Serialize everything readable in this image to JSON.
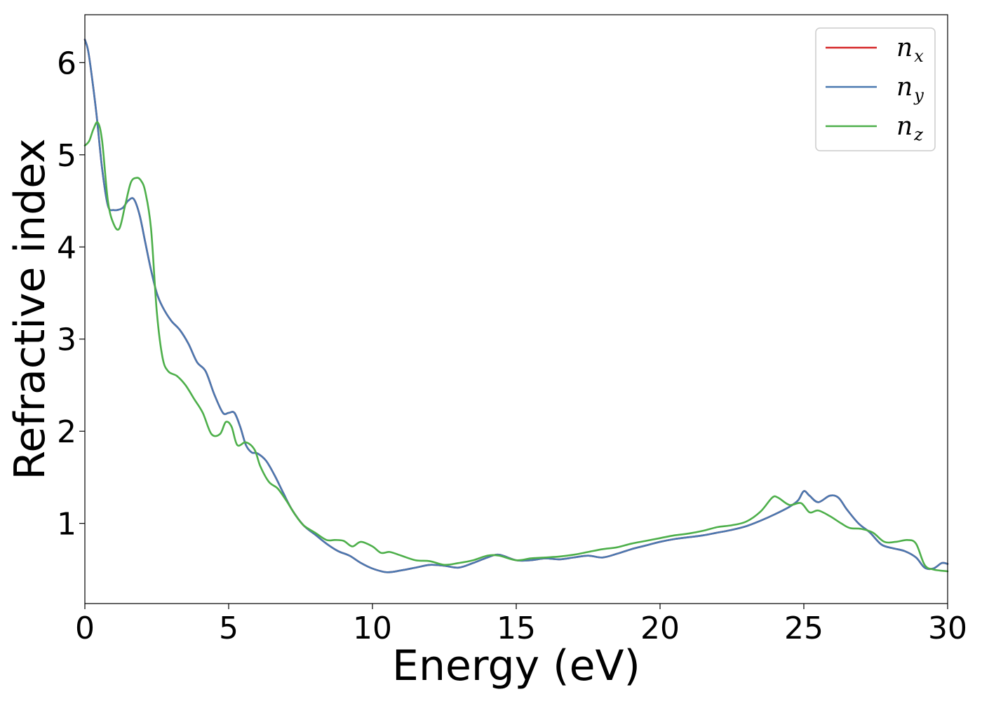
{
  "chart_data": {
    "type": "line",
    "title": "",
    "xlabel": "Energy (eV)",
    "ylabel": "Refractive index",
    "xlim": [
      0,
      30
    ],
    "ylim": [
      0.13,
      6.52
    ],
    "xticks": [
      0,
      5,
      10,
      15,
      20,
      25,
      30
    ],
    "xtick_labels": [
      "0",
      "5",
      "10",
      "15",
      "20",
      "25",
      "30"
    ],
    "yticks": [
      1,
      2,
      3,
      4,
      5,
      6
    ],
    "ytick_labels": [
      "1",
      "2",
      "3",
      "4",
      "5",
      "6"
    ],
    "grid": false,
    "legend_position": "top-right",
    "series": [
      {
        "name": "n_x",
        "label_main": "n",
        "label_sub": "x",
        "color": "#d62728",
        "x": [
          0,
          0.1,
          0.2,
          0.4,
          0.6,
          0.8,
          1.0,
          1.3,
          1.5,
          1.7,
          1.9,
          2.1,
          2.3,
          2.5,
          2.7,
          3.0,
          3.3,
          3.6,
          3.9,
          4.2,
          4.5,
          4.8,
          5.0,
          5.2,
          5.4,
          5.6,
          5.8,
          6.0,
          6.3,
          6.6,
          6.9,
          7.2,
          7.6,
          8.0,
          8.4,
          8.8,
          9.2,
          9.6,
          10.0,
          10.5,
          11.0,
          11.5,
          12.0,
          12.5,
          13.0,
          13.5,
          14.0,
          14.4,
          15.0,
          15.5,
          16.0,
          16.5,
          17.0,
          17.5,
          18.0,
          18.5,
          19.0,
          19.5,
          20.0,
          20.5,
          21.0,
          21.5,
          22.0,
          22.5,
          23.0,
          23.5,
          24.0,
          24.5,
          24.8,
          25.0,
          25.2,
          25.5,
          25.9,
          26.2,
          26.5,
          26.9,
          27.3,
          27.7,
          28.1,
          28.5,
          28.9,
          29.2,
          29.5,
          29.8,
          30.0
        ],
        "y": [
          6.25,
          6.15,
          5.95,
          5.45,
          4.85,
          4.45,
          4.4,
          4.42,
          4.5,
          4.52,
          4.35,
          4.05,
          3.75,
          3.5,
          3.35,
          3.2,
          3.1,
          2.95,
          2.75,
          2.65,
          2.4,
          2.2,
          2.2,
          2.2,
          2.05,
          1.85,
          1.77,
          1.76,
          1.68,
          1.52,
          1.33,
          1.15,
          0.98,
          0.88,
          0.78,
          0.7,
          0.65,
          0.57,
          0.51,
          0.47,
          0.49,
          0.52,
          0.55,
          0.54,
          0.52,
          0.57,
          0.63,
          0.66,
          0.6,
          0.6,
          0.62,
          0.61,
          0.63,
          0.65,
          0.63,
          0.67,
          0.72,
          0.76,
          0.8,
          0.83,
          0.85,
          0.87,
          0.9,
          0.93,
          0.97,
          1.03,
          1.1,
          1.18,
          1.25,
          1.35,
          1.3,
          1.23,
          1.3,
          1.28,
          1.15,
          1.0,
          0.9,
          0.77,
          0.73,
          0.7,
          0.63,
          0.52,
          0.51,
          0.57,
          0.56
        ]
      },
      {
        "name": "n_y",
        "label_main": "n",
        "label_sub": "y",
        "color": "#4a78b0",
        "x": [
          0,
          0.1,
          0.2,
          0.4,
          0.6,
          0.8,
          1.0,
          1.3,
          1.5,
          1.7,
          1.9,
          2.1,
          2.3,
          2.5,
          2.7,
          3.0,
          3.3,
          3.6,
          3.9,
          4.2,
          4.5,
          4.8,
          5.0,
          5.2,
          5.4,
          5.6,
          5.8,
          6.0,
          6.3,
          6.6,
          6.9,
          7.2,
          7.6,
          8.0,
          8.4,
          8.8,
          9.2,
          9.6,
          10.0,
          10.5,
          11.0,
          11.5,
          12.0,
          12.5,
          13.0,
          13.5,
          14.0,
          14.4,
          15.0,
          15.5,
          16.0,
          16.5,
          17.0,
          17.5,
          18.0,
          18.5,
          19.0,
          19.5,
          20.0,
          20.5,
          21.0,
          21.5,
          22.0,
          22.5,
          23.0,
          23.5,
          24.0,
          24.5,
          24.8,
          25.0,
          25.2,
          25.5,
          25.9,
          26.2,
          26.5,
          26.9,
          27.3,
          27.7,
          28.1,
          28.5,
          28.9,
          29.2,
          29.5,
          29.8,
          30.0
        ],
        "y": [
          6.25,
          6.15,
          5.95,
          5.45,
          4.85,
          4.45,
          4.4,
          4.42,
          4.5,
          4.52,
          4.35,
          4.05,
          3.75,
          3.5,
          3.35,
          3.2,
          3.1,
          2.95,
          2.75,
          2.65,
          2.4,
          2.2,
          2.2,
          2.2,
          2.05,
          1.85,
          1.77,
          1.76,
          1.68,
          1.52,
          1.33,
          1.15,
          0.98,
          0.88,
          0.78,
          0.7,
          0.65,
          0.57,
          0.51,
          0.47,
          0.49,
          0.52,
          0.55,
          0.54,
          0.52,
          0.57,
          0.63,
          0.66,
          0.6,
          0.6,
          0.62,
          0.61,
          0.63,
          0.65,
          0.63,
          0.67,
          0.72,
          0.76,
          0.8,
          0.83,
          0.85,
          0.87,
          0.9,
          0.93,
          0.97,
          1.03,
          1.1,
          1.18,
          1.25,
          1.35,
          1.3,
          1.23,
          1.3,
          1.28,
          1.15,
          1.0,
          0.9,
          0.77,
          0.73,
          0.7,
          0.63,
          0.52,
          0.51,
          0.57,
          0.56
        ]
      },
      {
        "name": "n_z",
        "label_main": "n",
        "label_sub": "z",
        "color": "#4daf4a",
        "x": [
          0,
          0.15,
          0.3,
          0.45,
          0.6,
          0.8,
          1.0,
          1.2,
          1.4,
          1.6,
          1.8,
          1.95,
          2.1,
          2.3,
          2.5,
          2.7,
          2.9,
          3.2,
          3.5,
          3.8,
          4.1,
          4.4,
          4.7,
          4.9,
          5.1,
          5.3,
          5.6,
          5.9,
          6.1,
          6.4,
          6.7,
          7.0,
          7.3,
          7.6,
          8.0,
          8.4,
          8.7,
          9.0,
          9.3,
          9.6,
          10.0,
          10.3,
          10.6,
          11.0,
          11.5,
          12.0,
          12.5,
          13.0,
          13.5,
          14.0,
          14.4,
          15.0,
          15.5,
          16.0,
          16.5,
          17.0,
          17.5,
          18.0,
          18.5,
          19.0,
          19.5,
          20.0,
          20.5,
          21.0,
          21.5,
          22.0,
          22.5,
          23.0,
          23.5,
          23.9,
          24.1,
          24.5,
          24.9,
          25.2,
          25.5,
          25.9,
          26.3,
          26.6,
          27.0,
          27.4,
          27.8,
          28.2,
          28.6,
          28.9,
          29.2,
          29.5,
          30.0
        ],
        "y": [
          5.1,
          5.15,
          5.28,
          5.35,
          5.15,
          4.5,
          4.25,
          4.2,
          4.45,
          4.7,
          4.75,
          4.72,
          4.6,
          4.2,
          3.3,
          2.8,
          2.65,
          2.6,
          2.5,
          2.35,
          2.2,
          1.97,
          1.97,
          2.1,
          2.05,
          1.85,
          1.88,
          1.8,
          1.62,
          1.45,
          1.38,
          1.25,
          1.1,
          0.98,
          0.9,
          0.82,
          0.82,
          0.81,
          0.75,
          0.8,
          0.75,
          0.68,
          0.69,
          0.65,
          0.6,
          0.59,
          0.55,
          0.57,
          0.6,
          0.65,
          0.65,
          0.6,
          0.62,
          0.63,
          0.64,
          0.66,
          0.69,
          0.72,
          0.74,
          0.78,
          0.81,
          0.84,
          0.87,
          0.89,
          0.92,
          0.96,
          0.98,
          1.02,
          1.13,
          1.28,
          1.28,
          1.2,
          1.22,
          1.12,
          1.14,
          1.08,
          1.0,
          0.95,
          0.94,
          0.9,
          0.8,
          0.8,
          0.82,
          0.78,
          0.55,
          0.5,
          0.48
        ]
      }
    ]
  }
}
